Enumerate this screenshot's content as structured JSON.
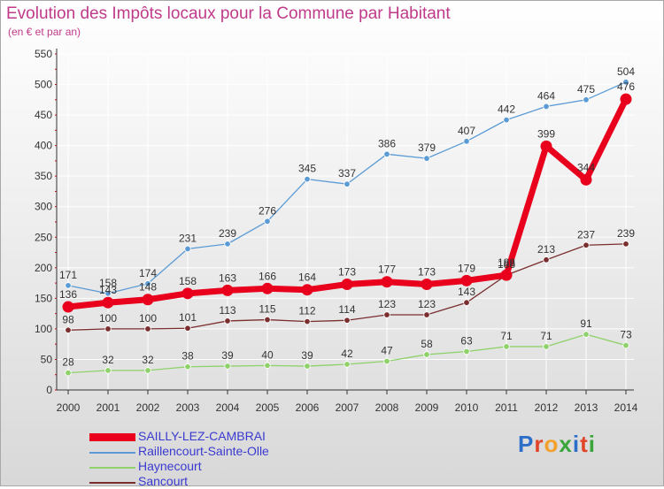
{
  "title": "Evolution des Impôts locaux pour la Commune par Habitant",
  "subtitle": "(en € et par an)",
  "logo": {
    "text": "Proxiti",
    "colors": [
      "#2b6fc9",
      "#e0452a",
      "#f2a12c",
      "#3aa53a",
      "#2b6fc9",
      "#e0452a",
      "#3aa53a"
    ]
  },
  "chart_data": {
    "type": "line",
    "x": [
      "2000",
      "2001",
      "2002",
      "2003",
      "2004",
      "2005",
      "2006",
      "2007",
      "2008",
      "2009",
      "2010",
      "2011",
      "2012",
      "2013",
      "2014"
    ],
    "ylim": [
      0,
      550
    ],
    "yticks": [
      0,
      50,
      100,
      150,
      200,
      250,
      300,
      350,
      400,
      450,
      500,
      550
    ],
    "grid": true,
    "legend_position": "bottom-left",
    "series": [
      {
        "name": "SAILLY-LEZ-CAMBRAI",
        "color": "#e8001c",
        "emphasis": true,
        "values": [
          136,
          143,
          148,
          158,
          163,
          166,
          164,
          173,
          177,
          173,
          179,
          188,
          399,
          344,
          476
        ]
      },
      {
        "name": "Raillencourt-Sainte-Olle",
        "color": "#5b9bd5",
        "values": [
          171,
          158,
          174,
          231,
          239,
          276,
          345,
          337,
          386,
          379,
          407,
          442,
          464,
          475,
          504
        ]
      },
      {
        "name": "Haynecourt",
        "color": "#8fd16a",
        "values": [
          28,
          32,
          32,
          38,
          39,
          40,
          39,
          42,
          47,
          58,
          63,
          71,
          71,
          91,
          73
        ]
      },
      {
        "name": "Sancourt",
        "color": "#7a2e2e",
        "values": [
          98,
          100,
          100,
          101,
          113,
          115,
          112,
          114,
          123,
          123,
          143,
          188,
          213,
          237,
          239
        ]
      }
    ],
    "data_labels": [
      [
        "136",
        "143",
        "148",
        "158",
        "163",
        "166",
        "164",
        "173",
        "177",
        "173",
        "179",
        "188",
        "399",
        "344",
        "476"
      ],
      [
        "171",
        "158",
        "174",
        "231",
        "239",
        "276",
        "345",
        "337",
        "386",
        "379",
        "407",
        "442",
        "464",
        "475",
        "504"
      ],
      [
        "28",
        "32",
        "32",
        "38",
        "39",
        "40",
        "39",
        "42",
        "47",
        "58",
        "63",
        "71",
        "71",
        "91",
        "73"
      ],
      [
        "98",
        "100",
        "100",
        "101",
        "113",
        "115",
        "112",
        "114",
        "123",
        "123",
        "143",
        "188",
        "213",
        "237",
        "239"
      ]
    ]
  }
}
